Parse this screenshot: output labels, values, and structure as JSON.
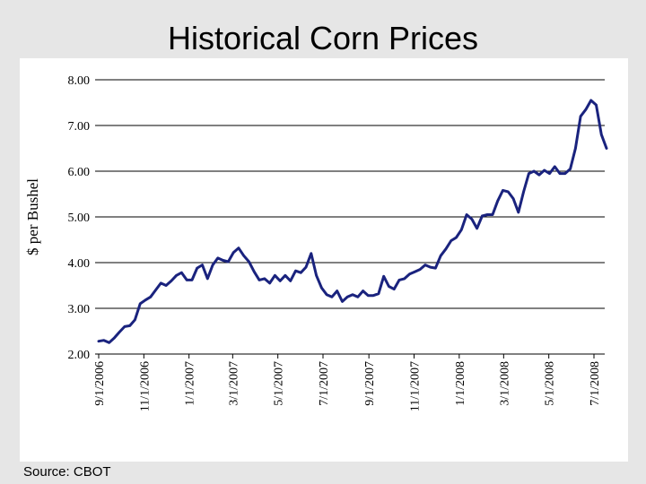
{
  "slide": {
    "title": "Historical Corn Prices",
    "source": "Source:  CBOT"
  },
  "colors": {
    "line": "#1a237e",
    "grid": "#000000",
    "background": "#e6e6e6",
    "panel": "#ffffff"
  },
  "chart_data": {
    "type": "line",
    "title": "",
    "xlabel": "",
    "ylabel": "$ per Bushel",
    "ylim": [
      2.0,
      8.0
    ],
    "yticks": [
      "2.00",
      "3.00",
      "4.00",
      "5.00",
      "6.00",
      "7.00",
      "8.00"
    ],
    "xticks": [
      "9/1/2006",
      "11/1/2006",
      "1/1/2007",
      "3/1/2007",
      "5/1/2007",
      "7/1/2007",
      "9/1/2007",
      "11/1/2007",
      "1/1/2008",
      "3/1/2008",
      "5/1/2008",
      "7/1/2008"
    ],
    "grid": "horizontal",
    "series": [
      {
        "values_by_date": [
          [
            "9/1/2006",
            2.28
          ],
          [
            "9/8/2006",
            2.3
          ],
          [
            "9/15/2006",
            2.25
          ],
          [
            "9/22/2006",
            2.35
          ],
          [
            "9/29/2006",
            2.48
          ],
          [
            "10/6/2006",
            2.6
          ],
          [
            "10/13/2006",
            2.62
          ],
          [
            "10/20/2006",
            2.75
          ],
          [
            "10/27/2006",
            3.1
          ],
          [
            "11/3/2006",
            3.18
          ],
          [
            "11/10/2006",
            3.25
          ],
          [
            "11/17/2006",
            3.4
          ],
          [
            "11/24/2006",
            3.55
          ],
          [
            "12/1/2006",
            3.5
          ],
          [
            "12/8/2006",
            3.6
          ],
          [
            "12/15/2006",
            3.72
          ],
          [
            "12/22/2006",
            3.78
          ],
          [
            "12/29/2006",
            3.62
          ],
          [
            "1/5/2007",
            3.62
          ],
          [
            "1/12/2007",
            3.88
          ],
          [
            "1/19/2007",
            3.95
          ],
          [
            "1/26/2007",
            3.65
          ],
          [
            "2/2/2007",
            3.95
          ],
          [
            "2/9/2007",
            4.1
          ],
          [
            "2/16/2007",
            4.05
          ],
          [
            "2/23/2007",
            4.02
          ],
          [
            "3/2/2007",
            4.22
          ],
          [
            "3/9/2007",
            4.32
          ],
          [
            "3/16/2007",
            4.15
          ],
          [
            "3/23/2007",
            4.02
          ],
          [
            "3/30/2007",
            3.8
          ],
          [
            "4/6/2007",
            3.62
          ],
          [
            "4/13/2007",
            3.65
          ],
          [
            "4/20/2007",
            3.55
          ],
          [
            "4/27/2007",
            3.72
          ],
          [
            "5/4/2007",
            3.6
          ],
          [
            "5/11/2007",
            3.72
          ],
          [
            "5/18/2007",
            3.6
          ],
          [
            "5/25/2007",
            3.82
          ],
          [
            "6/1/2007",
            3.78
          ],
          [
            "6/8/2007",
            3.9
          ],
          [
            "6/15/2007",
            4.2
          ],
          [
            "6/22/2007",
            3.72
          ],
          [
            "6/29/2007",
            3.45
          ],
          [
            "7/6/2007",
            3.3
          ],
          [
            "7/13/2007",
            3.25
          ],
          [
            "7/20/2007",
            3.38
          ],
          [
            "7/27/2007",
            3.15
          ],
          [
            "8/3/2007",
            3.25
          ],
          [
            "8/10/2007",
            3.3
          ],
          [
            "8/17/2007",
            3.25
          ],
          [
            "8/24/2007",
            3.38
          ],
          [
            "8/31/2007",
            3.28
          ],
          [
            "9/7/2007",
            3.28
          ],
          [
            "9/14/2007",
            3.32
          ],
          [
            "9/21/2007",
            3.7
          ],
          [
            "9/28/2007",
            3.48
          ],
          [
            "10/5/2007",
            3.42
          ],
          [
            "10/12/2007",
            3.62
          ],
          [
            "10/19/2007",
            3.65
          ],
          [
            "10/26/2007",
            3.75
          ],
          [
            "11/2/2007",
            3.8
          ],
          [
            "11/9/2007",
            3.85
          ],
          [
            "11/16/2007",
            3.95
          ],
          [
            "11/23/2007",
            3.9
          ],
          [
            "11/30/2007",
            3.88
          ],
          [
            "12/7/2007",
            4.15
          ],
          [
            "12/14/2007",
            4.3
          ],
          [
            "12/21/2007",
            4.48
          ],
          [
            "12/28/2007",
            4.55
          ],
          [
            "1/4/2008",
            4.72
          ],
          [
            "1/11/2008",
            5.05
          ],
          [
            "1/18/2008",
            4.95
          ],
          [
            "1/25/2008",
            4.75
          ],
          [
            "2/1/2008",
            5.02
          ],
          [
            "2/8/2008",
            5.05
          ],
          [
            "2/15/2008",
            5.05
          ],
          [
            "2/22/2008",
            5.35
          ],
          [
            "2/29/2008",
            5.58
          ],
          [
            "3/7/2008",
            5.55
          ],
          [
            "3/14/2008",
            5.4
          ],
          [
            "3/21/2008",
            5.1
          ],
          [
            "3/28/2008",
            5.55
          ],
          [
            "4/4/2008",
            5.95
          ],
          [
            "4/11/2008",
            6.0
          ],
          [
            "4/18/2008",
            5.92
          ],
          [
            "4/25/2008",
            6.02
          ],
          [
            "5/2/2008",
            5.95
          ],
          [
            "5/9/2008",
            6.1
          ],
          [
            "5/16/2008",
            5.95
          ],
          [
            "5/23/2008",
            5.95
          ],
          [
            "5/30/2008",
            6.05
          ],
          [
            "6/6/2008",
            6.5
          ],
          [
            "6/13/2008",
            7.2
          ],
          [
            "6/20/2008",
            7.35
          ],
          [
            "6/27/2008",
            7.55
          ],
          [
            "7/4/2008",
            7.45
          ],
          [
            "7/11/2008",
            6.8
          ],
          [
            "7/18/2008",
            6.5
          ]
        ]
      }
    ]
  }
}
